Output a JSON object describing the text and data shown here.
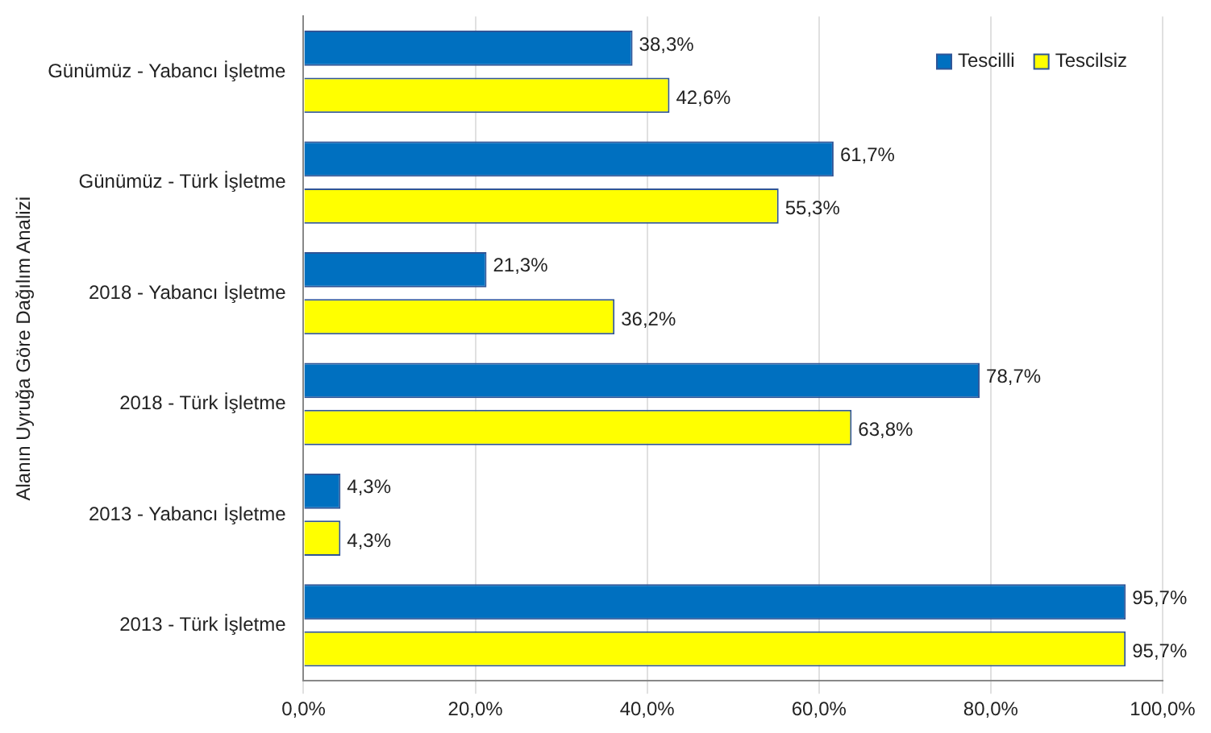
{
  "chart_data": {
    "type": "bar",
    "orientation": "horizontal",
    "ylabel": "Alanın Uyruğa Göre Dağılım Analizi",
    "categories": [
      "Günümüz - Yabancı İşletme",
      "Günümüz - Türk İşletme",
      "2018 - Yabancı İşletme",
      "2018 - Türk İşletme",
      "2013 - Yabancı İşletme",
      "2013 - Türk İşletme"
    ],
    "series": [
      {
        "name": "Tescilli",
        "color": "#0070c0",
        "values": [
          38.3,
          61.7,
          21.3,
          78.7,
          4.3,
          95.7
        ],
        "value_labels": [
          "38,3%",
          "61,7%",
          "21,3%",
          "78,7%",
          "4,3%",
          "95,7%"
        ]
      },
      {
        "name": "Tescilsiz",
        "color": "#ffff00",
        "values": [
          42.6,
          55.3,
          36.2,
          63.8,
          4.3,
          95.7
        ],
        "value_labels": [
          "42,6%",
          "55,3%",
          "36,2%",
          "63,8%",
          "4,3%",
          "95,7%"
        ]
      }
    ],
    "xlim": [
      0,
      100
    ],
    "xticks": [
      {
        "value": 0,
        "label": "0,0%"
      },
      {
        "value": 20,
        "label": "20,0%"
      },
      {
        "value": 40,
        "label": "40,0%"
      },
      {
        "value": 60,
        "label": "60,0%"
      },
      {
        "value": 80,
        "label": "80,0%"
      },
      {
        "value": 100,
        "label": "100,0%"
      }
    ],
    "grid": "x",
    "legend": "top right"
  }
}
